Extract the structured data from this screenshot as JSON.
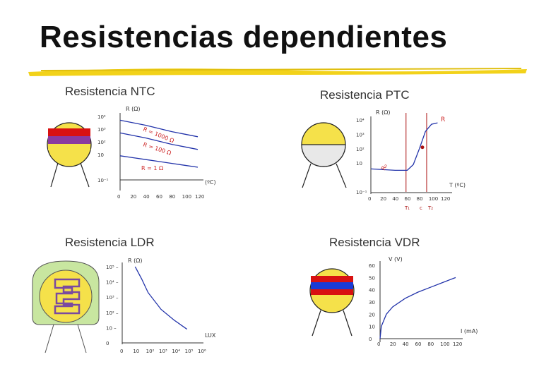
{
  "slide": {
    "title": "Resistencias dependientes"
  },
  "colors": {
    "accent": "#f2d21a",
    "curve": "#2233aa",
    "redline": "#aa1111",
    "disc": "#f5e14a",
    "ldr_bg": "#c8e6a0"
  },
  "ntc": {
    "title": "Resistencia NTC",
    "icon": "ntc-resistor-icon",
    "chart_data": {
      "type": "line",
      "title": "Resistencia NTC",
      "ylabel": "R (Ω)",
      "xlabel": "(ºC)",
      "x_ticks": [
        "0",
        "20",
        "40",
        "60",
        "80",
        "100",
        "120"
      ],
      "y_ticks": [
        "10⁴",
        "10³",
        "10²",
        "10",
        "10⁻¹"
      ],
      "series": [
        {
          "name": "R = 1000 Ω",
          "x": [
            0,
            20,
            40,
            60,
            80,
            100,
            120
          ],
          "y_log": [
            3.7,
            3.5,
            3.3,
            3.05,
            2.8,
            2.6,
            2.4
          ]
        },
        {
          "name": "R = 100 Ω",
          "x": [
            0,
            20,
            40,
            60,
            80,
            100,
            120
          ],
          "y_log": [
            2.7,
            2.5,
            2.3,
            2.05,
            1.8,
            1.6,
            1.4
          ]
        },
        {
          "name": "R = 1 Ω",
          "x": [
            0,
            20,
            40,
            60,
            80,
            100,
            120
          ],
          "y_log": [
            0.9,
            0.75,
            0.6,
            0.45,
            0.3,
            0.15,
            0.0
          ]
        }
      ],
      "labels": [
        "R = 1000 Ω",
        "R = 100 Ω",
        "R = 1 Ω"
      ]
    }
  },
  "ptc": {
    "title": "Resistencia PTC",
    "icon": "ptc-resistor-icon",
    "chart_data": {
      "type": "line",
      "title": "Resistencia PTC",
      "ylabel": "R (Ω)",
      "xlabel": "T (ºC)",
      "x_ticks": [
        "0",
        "20",
        "40",
        "60",
        "80",
        "100",
        "120"
      ],
      "y_ticks": [
        "10⁴",
        "10³",
        "10²",
        "10",
        "10⁻¹"
      ],
      "markers": [
        "T₁",
        "c",
        "T₂"
      ],
      "curve_labels": [
        "R",
        "R₀"
      ],
      "series": [
        {
          "name": "R",
          "x": [
            0,
            20,
            40,
            60,
            70,
            80,
            90,
            100,
            110
          ],
          "y_log": [
            0.6,
            0.55,
            0.5,
            0.5,
            0.9,
            2.0,
            3.2,
            3.7,
            3.8
          ]
        }
      ]
    }
  },
  "ldr": {
    "title": "Resistencia LDR",
    "icon": "ldr-photoresistor-icon",
    "chart_data": {
      "type": "line",
      "title": "Resistencia LDR",
      "ylabel": "R (Ω)",
      "xlabel": "LUX",
      "x_ticks": [
        "0",
        "10",
        "10²",
        "10³",
        "10⁴",
        "10⁵",
        "10⁶"
      ],
      "y_ticks": [
        "10⁵",
        "10⁴",
        "10³",
        "10²",
        "10",
        "0"
      ],
      "series": [
        {
          "name": "R",
          "x_log": [
            1.0,
            1.5,
            2.0,
            3.0,
            4.0,
            5.0
          ],
          "y_log": [
            5.0,
            4.2,
            3.3,
            2.2,
            1.5,
            0.9
          ]
        }
      ]
    }
  },
  "vdr": {
    "title": "Resistencia VDR",
    "icon": "vdr-varistor-icon",
    "chart_data": {
      "type": "line",
      "title": "Resistencia VDR",
      "ylabel": "V (V)",
      "xlabel": "I (mA)",
      "x_ticks": [
        "0",
        "20",
        "40",
        "60",
        "80",
        "100",
        "120"
      ],
      "y_ticks": [
        "60",
        "50",
        "40",
        "30",
        "20",
        "10",
        "0"
      ],
      "series": [
        {
          "name": "V",
          "x": [
            0,
            2,
            10,
            20,
            40,
            60,
            80,
            100,
            120
          ],
          "y": [
            0,
            10,
            20,
            26,
            33,
            38,
            42,
            46,
            50
          ]
        }
      ]
    }
  }
}
